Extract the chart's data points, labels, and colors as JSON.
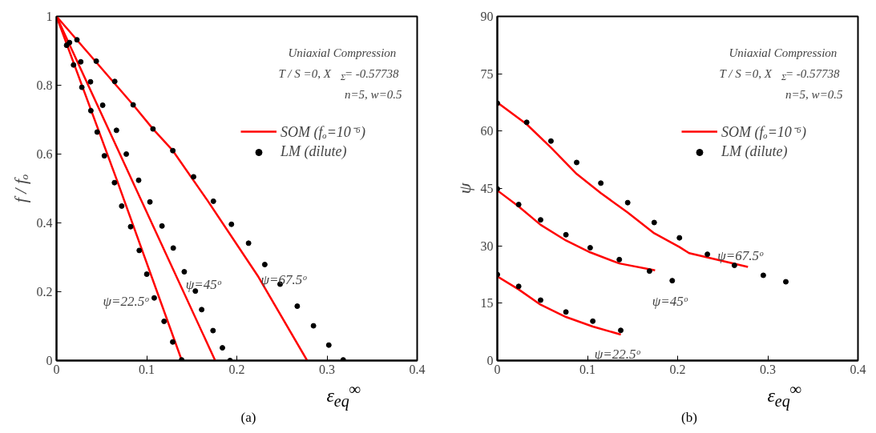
{
  "chart_data": [
    {
      "type": "line",
      "title": "(a)",
      "xlabel": "ε$_{eq}$$^{∞}$",
      "ylabel": "f / fₒ",
      "xlim": [
        0,
        0.4
      ],
      "ylim": [
        0,
        1
      ],
      "xticks": [
        0,
        0.1,
        0.2,
        0.3,
        0.4
      ],
      "yticks": [
        0,
        0.2,
        0.4,
        0.6,
        0.8,
        1
      ],
      "grid": false,
      "legend": "top right",
      "annotations": [
        "Uniaxial Compression",
        "T / S =0, X$_{Σ}$= -0.57738",
        "n=5, w=0.5",
        {
          "text": "ψ=22.5ᵒ",
          "x": 0.1084,
          "y": 0.182
        },
        {
          "text": "ψ=45ᵒ",
          "x": 0.154,
          "y": 0.202
        },
        {
          "text": "ψ=67.5ᵒ",
          "x": 0.248,
          "y": 0.222
        }
      ],
      "series": [
        {
          "name": "SOM (fₒ=10⁻⁶)",
          "color": "#ff0000",
          "line_style": "solid",
          "marker": "none",
          "x": [
            0,
            0.068,
            0.139
          ],
          "values": [
            1,
            0.517,
            0
          ]
        },
        {
          "color": "#ff0000",
          "line_style": "solid",
          "marker": "none",
          "x": [
            0,
            0.095,
            0.176
          ],
          "values": [
            1,
            0.46,
            0
          ]
        },
        {
          "color": "#ff0000",
          "line_style": "solid",
          "marker": "none",
          "x": [
            0,
            0.085,
            0.107,
            0.129,
            0.168,
            0.224,
            0.278
          ],
          "values": [
            1,
            0.743,
            0.673,
            0.61,
            0.463,
            0.243,
            0
          ]
        },
        {
          "name": "LM (dilute)",
          "type": "scatter",
          "color": "#000000",
          "marker": "circle",
          "x": [
            0.0112,
            0.0189,
            0.0281,
            0.0381,
            0.0451,
            0.0531,
            0.0643,
            0.0723,
            0.0822,
            0.0918,
            0.1001,
            0.1084,
            0.1193,
            0.1289,
            0.1388
          ],
          "values": [
            0.916,
            0.859,
            0.794,
            0.726,
            0.664,
            0.595,
            0.517,
            0.449,
            0.389,
            0.32,
            0.251,
            0.182,
            0.114,
            0.054,
            0.002
          ]
        },
        {
          "type": "scatter",
          "color": "#000000",
          "marker": "circle",
          "x": [
            0.0144,
            0.0269,
            0.0377,
            0.0512,
            0.0665,
            0.0774,
            0.0911,
            0.1036,
            0.117,
            0.1295,
            0.1417,
            0.154,
            0.161,
            0.1736,
            0.184,
            0.1925
          ],
          "values": [
            0.924,
            0.868,
            0.81,
            0.742,
            0.669,
            0.6,
            0.524,
            0.461,
            0.391,
            0.327,
            0.258,
            0.202,
            0.148,
            0.087,
            0.037,
            0
          ]
        },
        {
          "type": "scatter",
          "color": "#000000",
          "marker": "circle",
          "x": [
            0.0227,
            0.0441,
            0.0646,
            0.085,
            0.107,
            0.129,
            0.152,
            0.174,
            0.194,
            0.213,
            0.231,
            0.248,
            0.267,
            0.285,
            0.302,
            0.318
          ],
          "values": [
            0.932,
            0.87,
            0.811,
            0.743,
            0.673,
            0.61,
            0.534,
            0.463,
            0.396,
            0.341,
            0.279,
            0.222,
            0.158,
            0.101,
            0.045,
            0.002
          ]
        }
      ]
    },
    {
      "type": "line",
      "title": "(b)",
      "xlabel": "ε$_{eq}$$^{∞}$",
      "ylabel": "ψ",
      "xlim": [
        0,
        0.4
      ],
      "ylim": [
        0,
        90
      ],
      "xticks": [
        0,
        0.1,
        0.2,
        0.3,
        0.4
      ],
      "yticks": [
        0,
        15,
        30,
        45,
        60,
        75,
        90
      ],
      "grid": false,
      "legend": "top right",
      "annotations": [
        "Uniaxial Compression",
        "T / S =0, X$_{Σ}$= -0.57738",
        "n=5, w=0.5",
        {
          "text": "ψ=22.5ᵒ",
          "x": 0.137,
          "y": 6.8
        },
        {
          "text": "ψ=45ᵒ",
          "x": 0.194,
          "y": 20.9
        },
        {
          "text": "ψ=67.5ᵒ",
          "x": 0.278,
          "y": 24.5
        }
      ],
      "series": [
        {
          "name": "SOM (fₒ=10⁻⁶)",
          "color": "#ff0000",
          "line_style": "solid",
          "marker": "none",
          "x": [
            0,
            0.0326,
            0.0595,
            0.088,
            0.1148,
            0.1446,
            0.174,
            0.202,
            0.2127,
            0.278
          ],
          "values": [
            67.5,
            61.8,
            55.7,
            48.8,
            43.8,
            38.7,
            33.3,
            29.7,
            28.1,
            24.5
          ]
        },
        {
          "color": "#ff0000",
          "line_style": "solid",
          "marker": "none",
          "x": [
            0,
            0.0237,
            0.048,
            0.0761,
            0.103,
            0.1353,
            0.175
          ],
          "values": [
            44.5,
            40.3,
            35.5,
            31.4,
            28.3,
            25.4,
            23.6
          ]
        },
        {
          "color": "#ff0000",
          "line_style": "solid",
          "marker": "none",
          "x": [
            0,
            0.0237,
            0.048,
            0.0761,
            0.1059,
            0.137
          ],
          "values": [
            22,
            18.6,
            14.6,
            11.4,
            8.9,
            6.8
          ]
        },
        {
          "name": "LM (dilute)",
          "type": "scatter",
          "color": "#000000",
          "marker": "circle",
          "x": [
            0,
            0.0326,
            0.0595,
            0.088,
            0.1148,
            0.1446,
            0.174,
            0.202,
            0.233,
            0.263,
            0.295,
            0.32
          ],
          "values": [
            67.3,
            62.3,
            57.4,
            51.8,
            46.4,
            41.3,
            36.1,
            32.1,
            27.8,
            24.9,
            22.3,
            20.6
          ]
        },
        {
          "type": "scatter",
          "color": "#000000",
          "marker": "circle",
          "x": [
            0,
            0.0237,
            0.048,
            0.0761,
            0.103,
            0.1353,
            0.1688,
            0.194
          ],
          "values": [
            44.9,
            40.8,
            36.8,
            32.9,
            29.5,
            26.4,
            23.4,
            20.9
          ]
        },
        {
          "type": "scatter",
          "color": "#000000",
          "marker": "circle",
          "x": [
            0,
            0.0237,
            0.048,
            0.0761,
            0.1059,
            0.1369
          ],
          "values": [
            22.5,
            19.4,
            15.8,
            12.7,
            10.3,
            7.9
          ]
        }
      ]
    }
  ]
}
